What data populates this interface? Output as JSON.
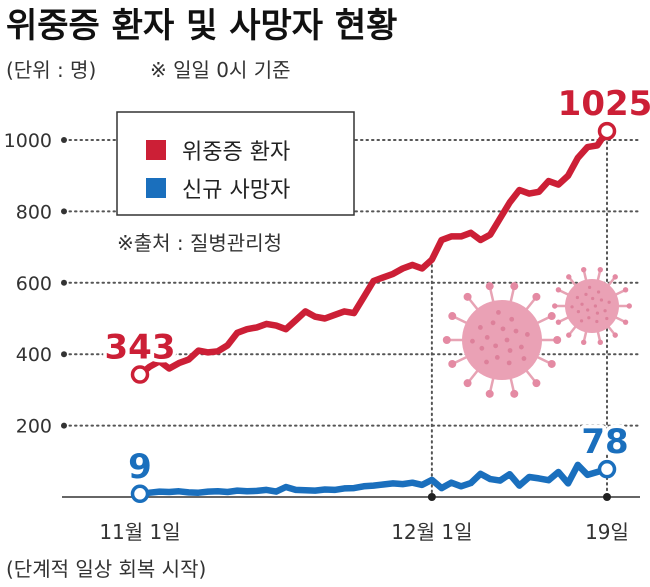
{
  "header": {
    "title": "위중증 환자 및 사망자 현황",
    "unit": "(단위 : 명)",
    "basis": "※ 일일 0시 기준"
  },
  "source": "※출처 : 질병관리청",
  "chart_data": {
    "type": "line",
    "title": "위중증 환자 및 사망자 현황",
    "ylim": [
      0,
      1050
    ],
    "y_ticks": [
      200,
      400,
      600,
      800,
      1000
    ],
    "x_tick_labels": [
      {
        "index": 0,
        "label": "11월 1일",
        "sublabel": "(단계적 일상 회복 시작)"
      },
      {
        "index": 30,
        "label": "12월 1일"
      },
      {
        "index": 48,
        "label": "19일"
      }
    ],
    "grid": "horizontal-dotted",
    "legend_position": "top-left",
    "series": [
      {
        "name": "위중증 환자",
        "color": "#cc1f36",
        "values": [
          343,
          365,
          380,
          360,
          375,
          385,
          410,
          405,
          408,
          425,
          460,
          470,
          475,
          485,
          480,
          470,
          495,
          520,
          505,
          500,
          510,
          520,
          515,
          560,
          605,
          615,
          625,
          640,
          650,
          640,
          665,
          720,
          730,
          730,
          740,
          720,
          735,
          780,
          825,
          860,
          850,
          855,
          885,
          875,
          900,
          950,
          980,
          985,
          1025
        ],
        "start_label": "343",
        "end_label": "1025"
      },
      {
        "name": "신규 사망자",
        "color": "#1a6fbd",
        "values": [
          9,
          12,
          15,
          14,
          16,
          13,
          12,
          15,
          16,
          14,
          18,
          16,
          17,
          20,
          15,
          28,
          20,
          19,
          18,
          21,
          20,
          24,
          25,
          30,
          32,
          35,
          38,
          36,
          40,
          34,
          48,
          25,
          40,
          30,
          39,
          65,
          50,
          46,
          64,
          32,
          56,
          52,
          47,
          70,
          38,
          90,
          62,
          70,
          78
        ],
        "start_label": "9",
        "end_label": "78"
      }
    ]
  }
}
